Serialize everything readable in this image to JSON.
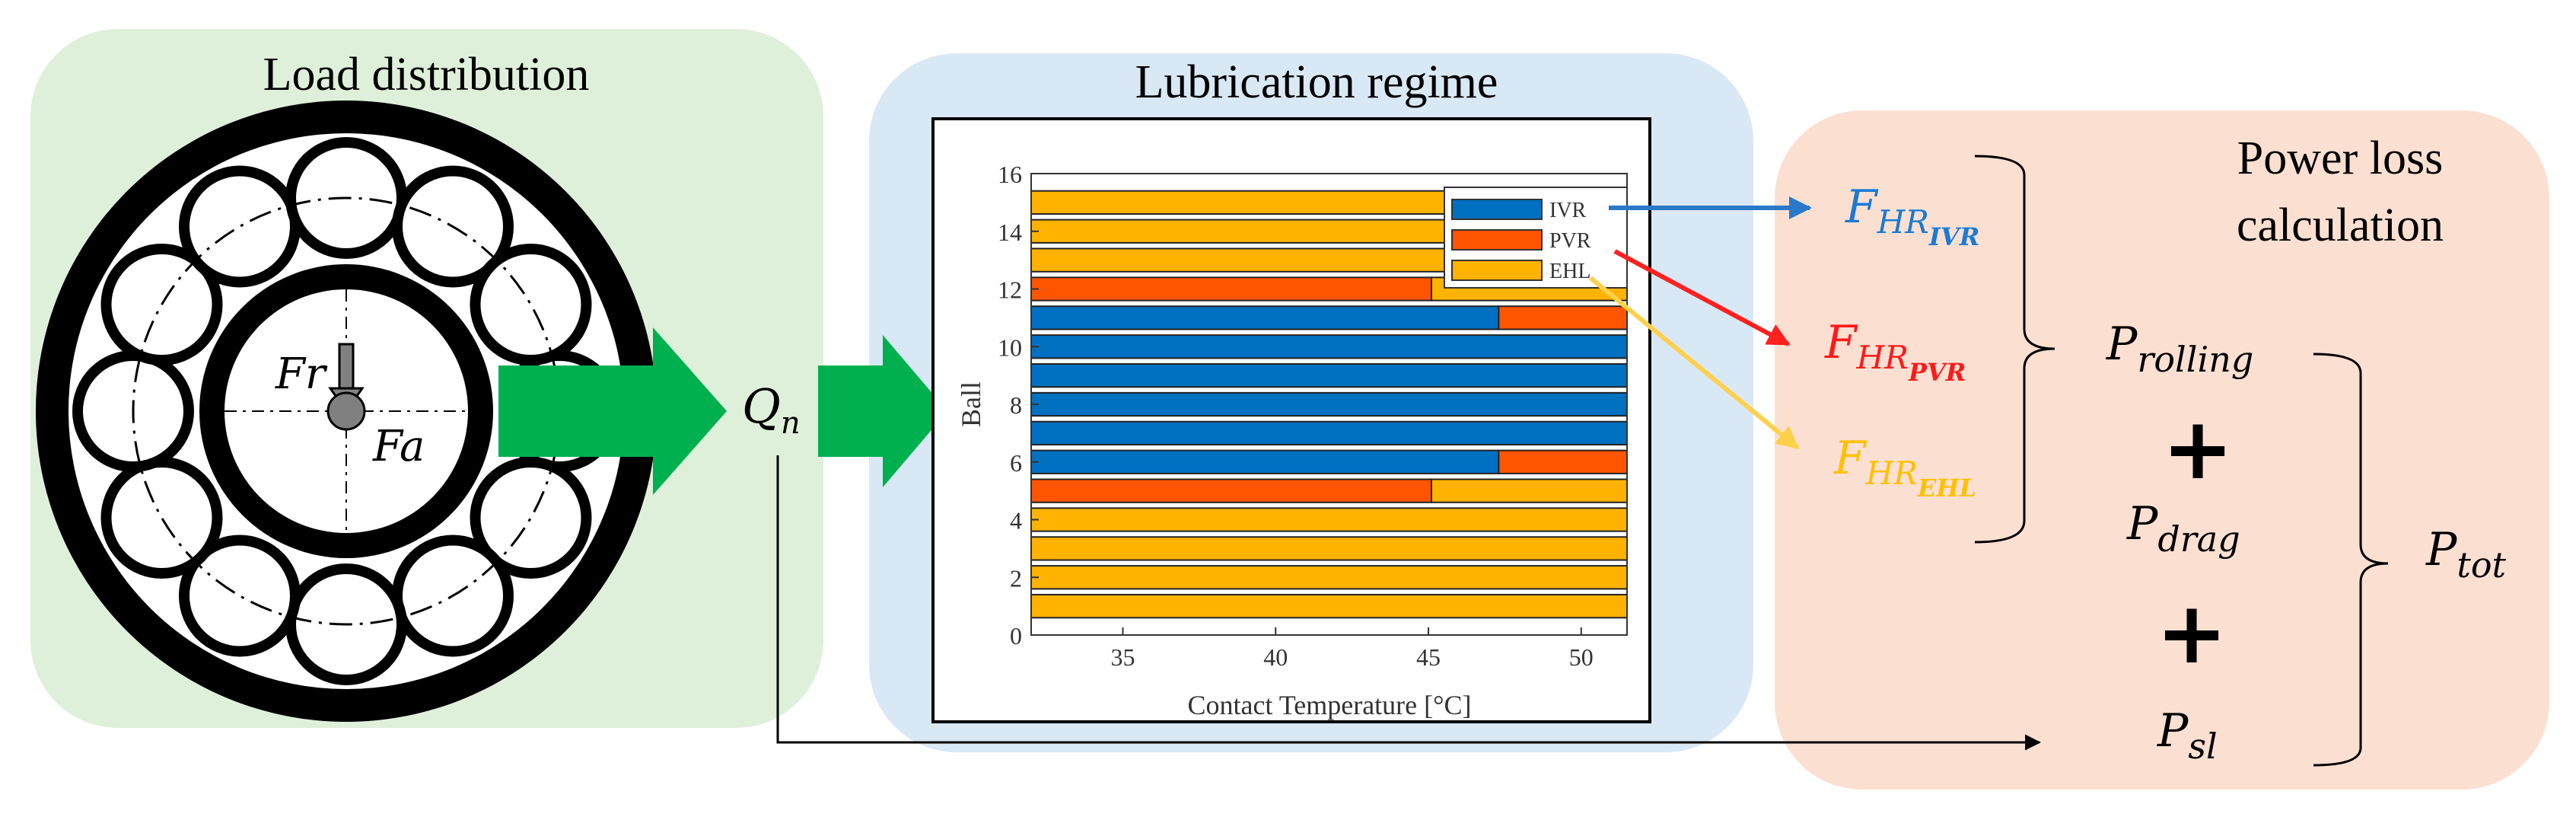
{
  "panels": {
    "load": {
      "title": "Load distribution",
      "fr_label": "Fr",
      "fa_label": "Fa",
      "q_base": "Q",
      "q_sub": "n"
    },
    "lube": {
      "title": "Lubrication regime"
    },
    "power": {
      "title_line1": "Power loss",
      "title_line2": "calculation"
    }
  },
  "formulas": {
    "f_base": "F",
    "f_hr_ivr_sub": "HR",
    "f_ivr_subsub": "IVR",
    "f_hr_pvr_sub": "HR",
    "f_pvr_subsub": "PVR",
    "f_hr_ehl_sub": "HR",
    "f_ehl_subsub": "EHL",
    "p_base": "P",
    "p_rolling_sub": "rolling",
    "p_drag_sub": "drag",
    "p_sl_sub": "sl",
    "p_tot_sub": "tot",
    "plus": "+"
  },
  "colors": {
    "load_bg": "#dff0da",
    "lube_bg": "#d9e8f5",
    "power_bg": "#fbe0d2",
    "green_arrow": "#00b04f",
    "ivr": "#0070c0",
    "pvr": "#ff5500",
    "ehl": "#ffb300",
    "ivr_text": "#1a7ad4",
    "pvr_text": "#ff1a1a",
    "ehl_text": "#ffc000",
    "arrow_ivr": "#2a78c8",
    "arrow_pvr": "#ff2020",
    "arrow_ehl": "#ffd04a"
  },
  "chart_data": {
    "type": "bar",
    "orientation": "horizontal-stacked",
    "title": "",
    "xlabel": "Contact Temperature [°C]",
    "ylabel": "Ball",
    "xlim": [
      32,
      51.5
    ],
    "ylim": [
      0,
      16
    ],
    "xticks": [
      35,
      40,
      45,
      50
    ],
    "yticks": [
      0,
      2,
      4,
      6,
      8,
      10,
      12,
      14,
      16
    ],
    "legend": {
      "placement": "top-right",
      "entries": [
        "IVR",
        "PVR",
        "EHL"
      ]
    },
    "balls": [
      {
        "ball": 1,
        "segments": [
          {
            "regime": "EHL",
            "from": 32,
            "to": 51.5
          }
        ]
      },
      {
        "ball": 2,
        "segments": [
          {
            "regime": "EHL",
            "from": 32,
            "to": 51.5
          }
        ]
      },
      {
        "ball": 3,
        "segments": [
          {
            "regime": "EHL",
            "from": 32,
            "to": 51.5
          }
        ]
      },
      {
        "ball": 4,
        "segments": [
          {
            "regime": "EHL",
            "from": 32,
            "to": 51.5
          }
        ]
      },
      {
        "ball": 5,
        "segments": [
          {
            "regime": "PVR",
            "from": 32,
            "to": 45.1
          },
          {
            "regime": "EHL",
            "from": 45.1,
            "to": 51.5
          }
        ]
      },
      {
        "ball": 6,
        "segments": [
          {
            "regime": "IVR",
            "from": 32,
            "to": 47.3
          },
          {
            "regime": "PVR",
            "from": 47.3,
            "to": 51.5
          }
        ]
      },
      {
        "ball": 7,
        "segments": [
          {
            "regime": "IVR",
            "from": 32,
            "to": 51.5
          }
        ]
      },
      {
        "ball": 8,
        "segments": [
          {
            "regime": "IVR",
            "from": 32,
            "to": 51.5
          }
        ]
      },
      {
        "ball": 9,
        "segments": [
          {
            "regime": "IVR",
            "from": 32,
            "to": 51.5
          }
        ]
      },
      {
        "ball": 10,
        "segments": [
          {
            "regime": "IVR",
            "from": 32,
            "to": 51.5
          }
        ]
      },
      {
        "ball": 11,
        "segments": [
          {
            "regime": "IVR",
            "from": 32,
            "to": 47.3
          },
          {
            "regime": "PVR",
            "from": 47.3,
            "to": 51.5
          }
        ]
      },
      {
        "ball": 12,
        "segments": [
          {
            "regime": "PVR",
            "from": 32,
            "to": 45.1
          },
          {
            "regime": "EHL",
            "from": 45.1,
            "to": 51.5
          }
        ]
      },
      {
        "ball": 13,
        "segments": [
          {
            "regime": "EHL",
            "from": 32,
            "to": 51.5
          }
        ]
      },
      {
        "ball": 14,
        "segments": [
          {
            "regime": "EHL",
            "from": 32,
            "to": 51.5
          }
        ]
      },
      {
        "ball": 15,
        "segments": [
          {
            "regime": "EHL",
            "from": 32,
            "to": 51.5
          }
        ]
      }
    ]
  }
}
